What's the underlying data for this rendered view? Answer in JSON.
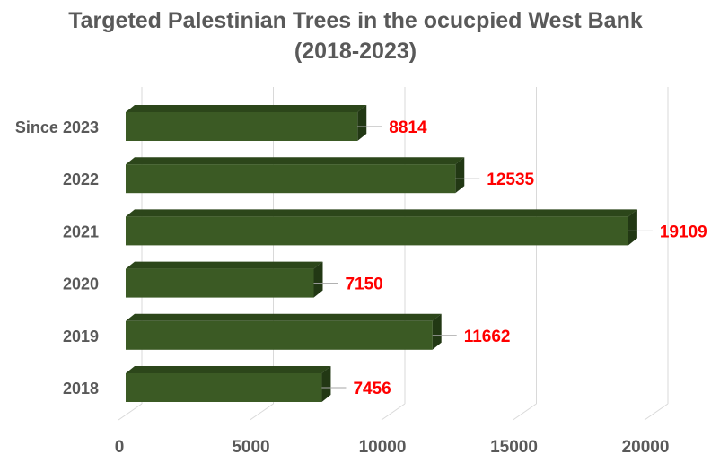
{
  "chart_data": {
    "type": "bar",
    "orientation": "horizontal",
    "style": "3d",
    "title_line1": "Targeted Palestinian Trees in the ocucpied West Bank",
    "title_line2": "(2018-2023)",
    "categories": [
      "Since 2023",
      "2022",
      "2021",
      "2020",
      "2019",
      "2018"
    ],
    "values": [
      8814,
      12535,
      19109,
      7150,
      11662,
      7456
    ],
    "xlim": [
      0,
      20000
    ],
    "xticks": [
      "0",
      "5000",
      "10000",
      "15000",
      "20000"
    ],
    "grid": true,
    "legend": "none",
    "colors": {
      "bar_front": "#3b5a24",
      "bar_top": "#2c461a",
      "bar_side": "#223814",
      "label": "#ff0000",
      "text": "#595959",
      "grid": "#d9d9d9"
    }
  }
}
